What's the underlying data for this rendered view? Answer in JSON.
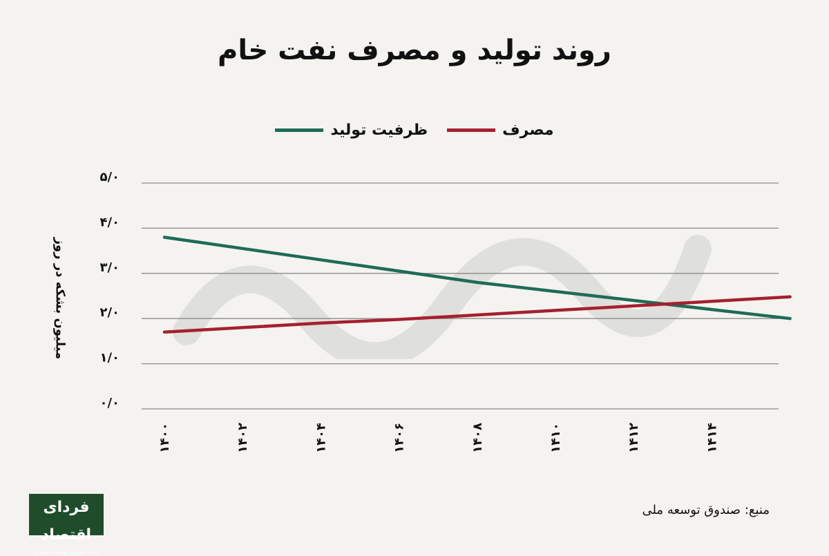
{
  "colors": {
    "background": "#f4f3ef",
    "grid": "#8a8a8a",
    "text": "#111111",
    "capacity": "#1f6b57",
    "consumption": "#a5202f",
    "logo_bg": "#1f4d2b"
  },
  "logo": {
    "main": "فردای اقتصاد",
    "sub": "رسانه تصویری روندهای اقتصادی"
  },
  "source": "منبع: صندوق توسعه ملی",
  "chart_data": {
    "type": "line",
    "title": "روند تولید و مصرف نفت خام",
    "ylabel": "میلیون بشکه در روز",
    "xlabel": "",
    "legend": "top-center",
    "grid": true,
    "ylim": [
      0,
      5
    ],
    "y_ticks": [
      0,
      1,
      2,
      3,
      4,
      5
    ],
    "y_tick_labels": [
      "۰/۰",
      "۱/۰",
      "۲/۰",
      "۳/۰",
      "۴/۰",
      "۵/۰"
    ],
    "x_ticks": [
      1400,
      1402,
      1404,
      1406,
      1408,
      1410,
      1412,
      1414
    ],
    "x_tick_labels": [
      "۱۴۰۰",
      "۱۴۰۲",
      "۱۴۰۴",
      "۱۴۰۶",
      "۱۴۰۸",
      "۱۴۱۰",
      "۱۴۱۲",
      "۱۴۱۴"
    ],
    "x": [
      1400,
      1402,
      1404,
      1406,
      1408,
      1410,
      1412,
      1414,
      1416
    ],
    "series": [
      {
        "name": "ظرفیت تولید",
        "color": "#1f6b57",
        "values": [
          3.8,
          3.55,
          3.3,
          3.05,
          2.8,
          2.6,
          2.4,
          2.2,
          2.0
        ]
      },
      {
        "name": "مصرف",
        "color": "#a5202f",
        "values": [
          1.7,
          1.8,
          1.9,
          1.98,
          2.08,
          2.18,
          2.28,
          2.38,
          2.48
        ]
      }
    ]
  }
}
